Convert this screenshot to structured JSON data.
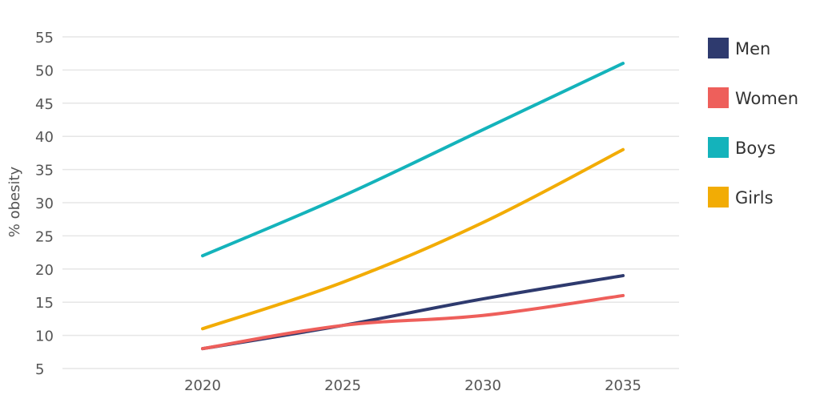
{
  "chart_data": {
    "type": "line",
    "title": "",
    "xlabel": "",
    "ylabel": "% obesity",
    "x": [
      2020,
      2025,
      2030,
      2035
    ],
    "xlim": [
      2015,
      2037
    ],
    "ylim": [
      5,
      55
    ],
    "yticks": [
      5,
      10,
      15,
      20,
      25,
      30,
      35,
      40,
      45,
      50,
      55
    ],
    "xticks": [
      2020,
      2025,
      2030,
      2035
    ],
    "grid": true,
    "legend_position": "right",
    "series": [
      {
        "name": "Men",
        "color": "#2e3a6e",
        "values": [
          8,
          11.5,
          15.5,
          19
        ]
      },
      {
        "name": "Women",
        "color": "#ee5f5b",
        "values": [
          8,
          11.5,
          13,
          16
        ]
      },
      {
        "name": "Boys",
        "color": "#14b3bb",
        "values": [
          22,
          31,
          41,
          51
        ]
      },
      {
        "name": "Girls",
        "color": "#f2ac05",
        "values": [
          11,
          18,
          27,
          38
        ]
      }
    ]
  }
}
